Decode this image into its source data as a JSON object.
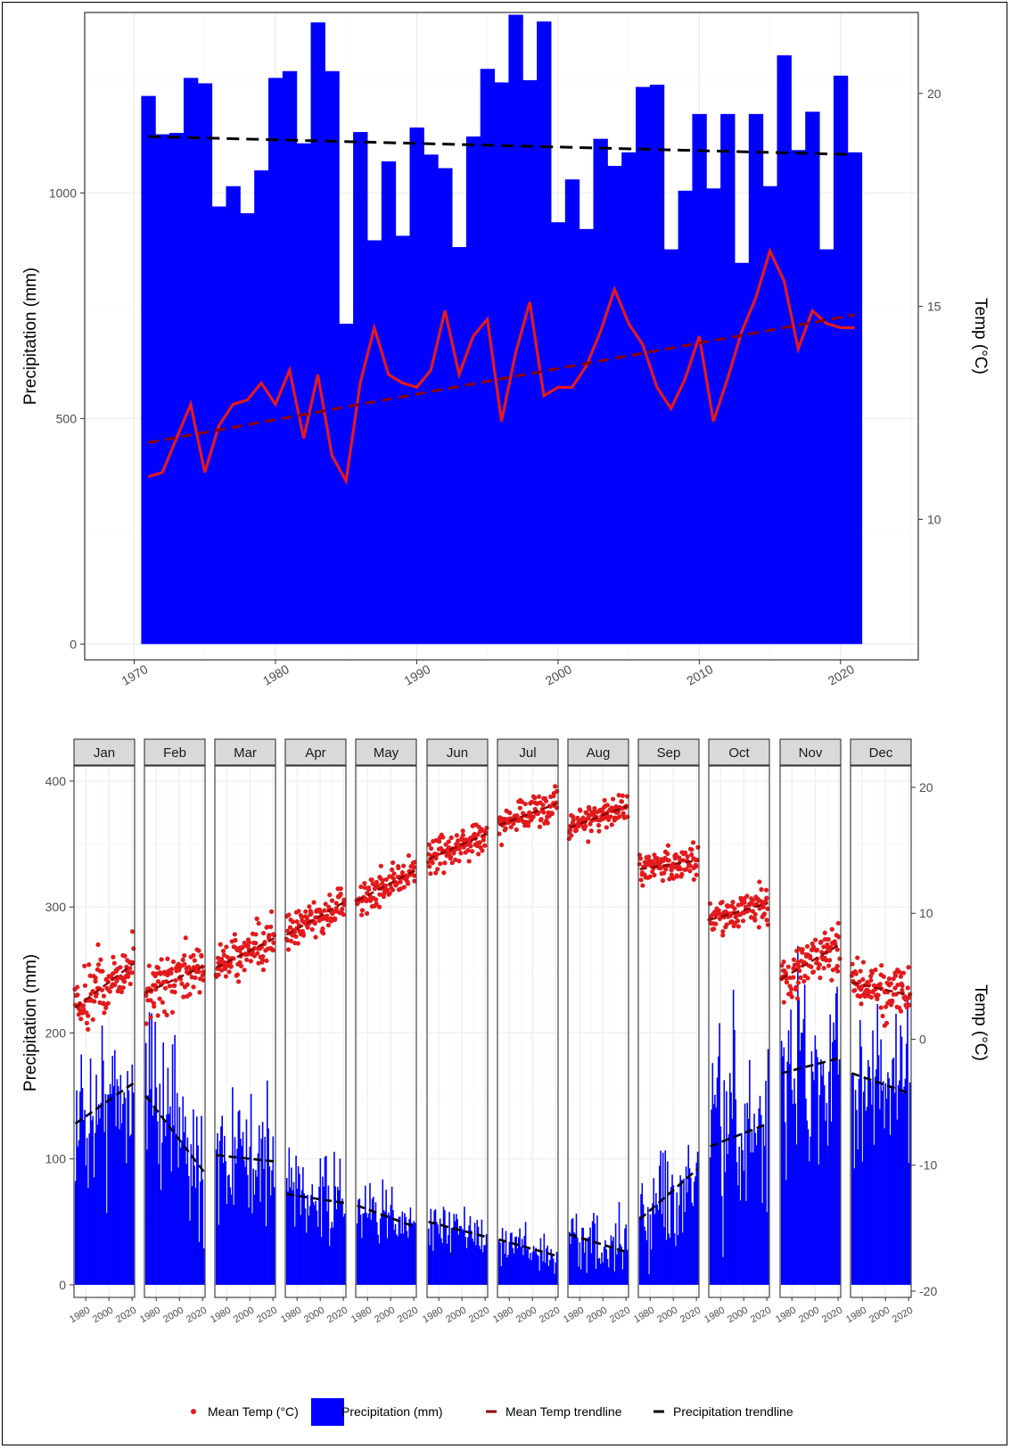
{
  "chart_data": [
    {
      "type": "bar",
      "title": "",
      "xlabel": "",
      "ylabel": "Precipitation (mm)",
      "y2label": "Temp (°C)",
      "xlim": [
        1966.5,
        2025.5
      ],
      "ylim": [
        -35,
        1400
      ],
      "y2lim": [
        6.7,
        21.9
      ],
      "x_ticks": [
        "1970",
        "1980",
        "1990",
        "2000",
        "2010",
        "2020"
      ],
      "y_ticks": [
        "0",
        "500",
        "1000"
      ],
      "y2_ticks": [
        "10",
        "15",
        "20"
      ],
      "grid": true,
      "years": [
        1971,
        1972,
        1973,
        1974,
        1975,
        1976,
        1977,
        1978,
        1979,
        1980,
        1981,
        1982,
        1983,
        1984,
        1985,
        1986,
        1987,
        1988,
        1989,
        1990,
        1991,
        1992,
        1993,
        1994,
        1995,
        1996,
        1997,
        1998,
        1999,
        2000,
        2001,
        2002,
        2003,
        2004,
        2005,
        2006,
        2007,
        2008,
        2009,
        2010,
        2011,
        2012,
        2013,
        2014,
        2015,
        2016,
        2017,
        2018,
        2019,
        2020,
        2021
      ],
      "series": [
        {
          "name": "Precipitation (mm)",
          "kind": "bar",
          "color": "#0000ff",
          "values": [
            1215,
            1130,
            1133,
            1255,
            1243,
            970,
            1015,
            955,
            1050,
            1255,
            1270,
            1110,
            1378,
            1270,
            710,
            1135,
            895,
            1070,
            905,
            1145,
            1085,
            1055,
            880,
            1125,
            1275,
            1245,
            1395,
            1250,
            1380,
            935,
            1030,
            920,
            1120,
            1060,
            1090,
            1235,
            1240,
            875,
            1005,
            1175,
            1010,
            1175,
            845,
            1175,
            1015,
            1305,
            1095,
            1180,
            875,
            1260,
            1090
          ]
        },
        {
          "name": "Mean Temp (°C)",
          "kind": "line",
          "color": "#e31a1c",
          "values": [
            11.0,
            11.1,
            11.9,
            12.7,
            11.1,
            12.2,
            12.7,
            12.8,
            13.2,
            12.7,
            13.5,
            11.9,
            13.4,
            11.5,
            10.9,
            13.2,
            14.5,
            13.4,
            13.2,
            13.1,
            13.5,
            14.9,
            13.4,
            14.3,
            14.7,
            12.3,
            13.9,
            15.1,
            12.9,
            13.1,
            13.1,
            13.6,
            14.4,
            15.4,
            14.6,
            14.1,
            13.1,
            12.6,
            13.3,
            14.3,
            12.3,
            13.3,
            14.4,
            15.2,
            16.3,
            15.6,
            14.0,
            14.9,
            14.6,
            14.5,
            14.5
          ]
        },
        {
          "name": "Precipitation trendline",
          "kind": "trend",
          "color": "#000000",
          "from": [
            1971,
            1125
          ],
          "to": [
            2021,
            1085
          ]
        },
        {
          "name": "Mean Temp trendline",
          "kind": "trend",
          "color": "#8b0000",
          "from": [
            1971,
            11.8
          ],
          "to": [
            2021,
            14.8
          ]
        }
      ]
    },
    {
      "type": "bar",
      "title": "",
      "xlabel": "",
      "ylabel": "Precipitation (mm)",
      "y2label": "Temp (°C)",
      "ylim": [
        -10,
        412
      ],
      "y2lim": [
        -20.5,
        21.7
      ],
      "y_ticks": [
        "0",
        "100",
        "200",
        "300",
        "400"
      ],
      "y2_ticks": [
        "-20",
        "-10",
        "0",
        "10",
        "20"
      ],
      "x_ticks": [
        "1980",
        "2000",
        "2020"
      ],
      "grid": true,
      "panels": [
        {
          "month": "Jan",
          "precip_mean": 150,
          "precip_sd": 42,
          "precip_trend": [
            128,
            160
          ],
          "temp_mean": 4.5,
          "temp_sd": 2.0,
          "temp_trend": [
            2.5,
            6.0
          ]
        },
        {
          "month": "Feb",
          "precip_mean": 135,
          "precip_sd": 45,
          "precip_trend": [
            150,
            90
          ],
          "temp_mean": 4.8,
          "temp_sd": 2.0,
          "temp_trend": [
            3.7,
            5.8
          ]
        },
        {
          "month": "Mar",
          "precip_mean": 125,
          "precip_sd": 35,
          "precip_trend": [
            103,
            98
          ],
          "temp_mean": 6.8,
          "temp_sd": 1.6,
          "temp_trend": [
            5.7,
            8.0
          ]
        },
        {
          "month": "Apr",
          "precip_mean": 85,
          "precip_sd": 22,
          "precip_trend": [
            72,
            65
          ],
          "temp_mean": 9.5,
          "temp_sd": 1.2,
          "temp_trend": [
            8.3,
            10.9
          ]
        },
        {
          "month": "May",
          "precip_mean": 75,
          "precip_sd": 15,
          "precip_trend": [
            63,
            46
          ],
          "temp_mean": 12.0,
          "temp_sd": 1.1,
          "temp_trend": [
            11.0,
            13.4
          ]
        },
        {
          "month": "Jun",
          "precip_mean": 60,
          "precip_sd": 12,
          "precip_trend": [
            50,
            38
          ],
          "temp_mean": 15.0,
          "temp_sd": 1.1,
          "temp_trend": [
            14.3,
            16.3
          ]
        },
        {
          "month": "Jul",
          "precip_mean": 45,
          "precip_sd": 12,
          "precip_trend": [
            36,
            23
          ],
          "temp_mean": 17.8,
          "temp_sd": 1.0,
          "temp_trend": [
            17.0,
            18.7
          ]
        },
        {
          "month": "Aug",
          "precip_mean": 50,
          "precip_sd": 18,
          "precip_trend": [
            40,
            26
          ],
          "temp_mean": 17.8,
          "temp_sd": 0.9,
          "temp_trend": [
            16.8,
            18.5
          ]
        },
        {
          "month": "Sep",
          "precip_mean": 95,
          "precip_sd": 30,
          "precip_trend": [
            52,
            92
          ],
          "temp_mean": 14.0,
          "temp_sd": 1.1,
          "temp_trend": [
            13.5,
            14.2
          ]
        },
        {
          "month": "Oct",
          "precip_mean": 150,
          "precip_sd": 50,
          "precip_trend": [
            110,
            128
          ],
          "temp_mean": 10.0,
          "temp_sd": 1.1,
          "temp_trend": [
            9.5,
            10.8
          ]
        },
        {
          "month": "Nov",
          "precip_mean": 220,
          "precip_sd": 50,
          "precip_trend": [
            168,
            180
          ],
          "temp_mean": 6.0,
          "temp_sd": 1.6,
          "temp_trend": [
            4.8,
            7.5
          ]
        },
        {
          "month": "Dec",
          "precip_mean": 175,
          "precip_sd": 40,
          "precip_trend": [
            168,
            152
          ],
          "temp_mean": 3.8,
          "temp_sd": 1.6,
          "temp_trend": [
            4.5,
            3.5
          ]
        }
      ]
    }
  ],
  "legend": {
    "items": [
      {
        "label": "Mean Temp (°C)",
        "kind": "point",
        "color": "#e31a1c"
      },
      {
        "label": "Precipitation (mm)",
        "kind": "fill",
        "color": "#0000ff"
      },
      {
        "label": "Mean Temp trendline",
        "kind": "dash",
        "color": "#8b0000"
      },
      {
        "label": "Precipitation trendline",
        "kind": "dash",
        "color": "#000000"
      }
    ]
  }
}
